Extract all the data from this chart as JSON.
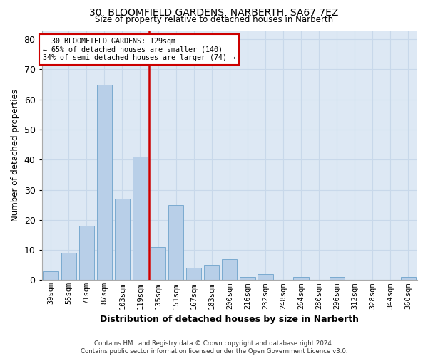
{
  "title_line1": "30, BLOOMFIELD GARDENS, NARBERTH, SA67 7EZ",
  "title_line2": "Size of property relative to detached houses in Narberth",
  "xlabel": "Distribution of detached houses by size in Narberth",
  "ylabel": "Number of detached properties",
  "categories": [
    "39sqm",
    "55sqm",
    "71sqm",
    "87sqm",
    "103sqm",
    "119sqm",
    "135sqm",
    "151sqm",
    "167sqm",
    "183sqm",
    "200sqm",
    "216sqm",
    "232sqm",
    "248sqm",
    "264sqm",
    "280sqm",
    "296sqm",
    "312sqm",
    "328sqm",
    "344sqm",
    "360sqm"
  ],
  "values": [
    3,
    9,
    18,
    65,
    27,
    41,
    11,
    25,
    4,
    5,
    7,
    1,
    2,
    0,
    1,
    0,
    1,
    0,
    0,
    0,
    1
  ],
  "bar_color": "#b8cfe8",
  "bar_edge_color": "#7aaad0",
  "vline_color": "#cc0000",
  "annotation_line1": "  30 BLOOMFIELD GARDENS: 129sqm",
  "annotation_line2": "← 65% of detached houses are smaller (140)",
  "annotation_line3": "34% of semi-detached houses are larger (74) →",
  "annotation_box_color": "white",
  "annotation_box_edge": "#cc0000",
  "ylim": [
    0,
    83
  ],
  "yticks": [
    0,
    10,
    20,
    30,
    40,
    50,
    60,
    70,
    80
  ],
  "grid_color": "#c8d8ea",
  "footnote": "Contains HM Land Registry data © Crown copyright and database right 2024.\nContains public sector information licensed under the Open Government Licence v3.0.",
  "background_color": "#dde8f4"
}
